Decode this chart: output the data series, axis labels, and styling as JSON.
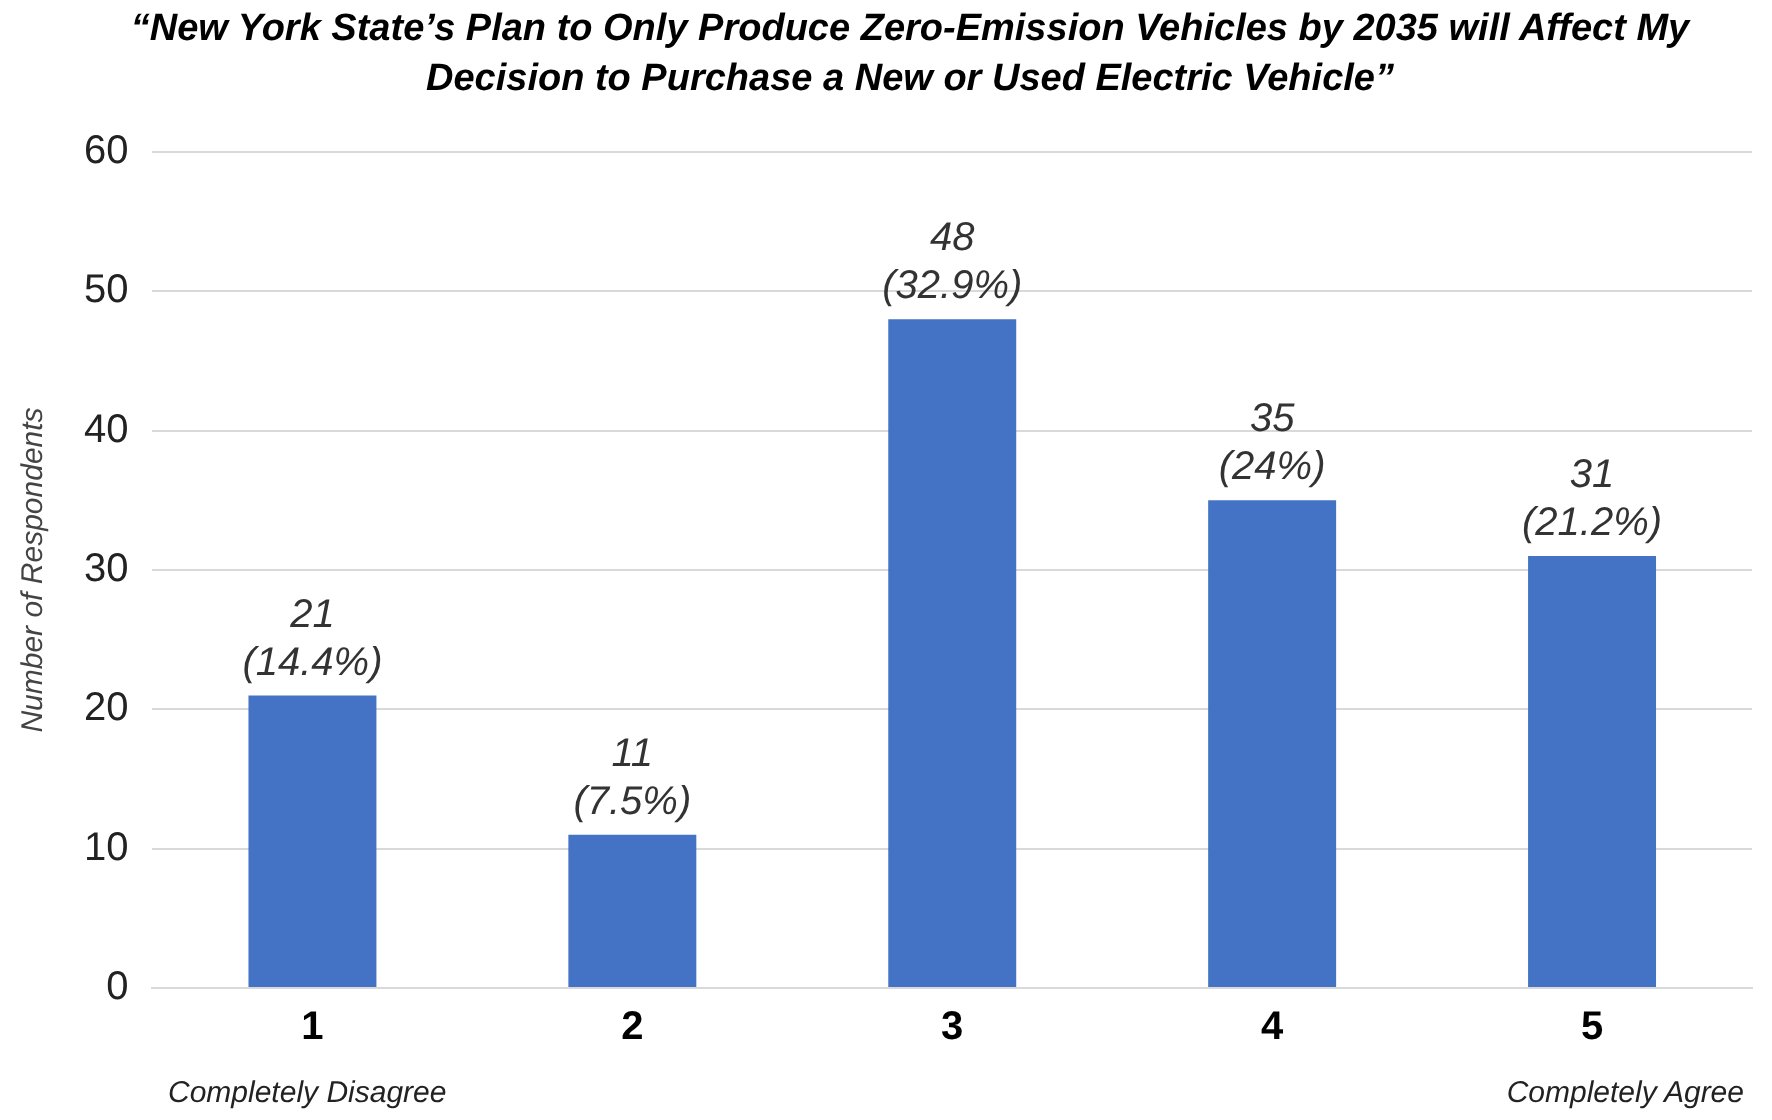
{
  "chart_data": {
    "type": "bar",
    "title": "“New York State’s Plan to Only Produce Zero-Emission Vehicles by 2035 will Affect My Decision to Purchase a New or Used Electric Vehicle”",
    "ylabel": "Number of Respondents",
    "categories": [
      "1",
      "2",
      "3",
      "4",
      "5"
    ],
    "values": [
      21,
      11,
      48,
      35,
      31
    ],
    "value_labels": [
      "21 (14.4%)",
      "11 (7.5%)",
      "48 (32.9%)",
      "35 (24%)",
      "31 (21.2%)"
    ],
    "color": "#4472c4",
    "ylim": [
      0,
      60
    ],
    "yticks": [
      0,
      10,
      20,
      30,
      40,
      50,
      60
    ],
    "grid": "y",
    "annotations": [
      "Completely Disagree",
      "Completely Agree"
    ]
  }
}
